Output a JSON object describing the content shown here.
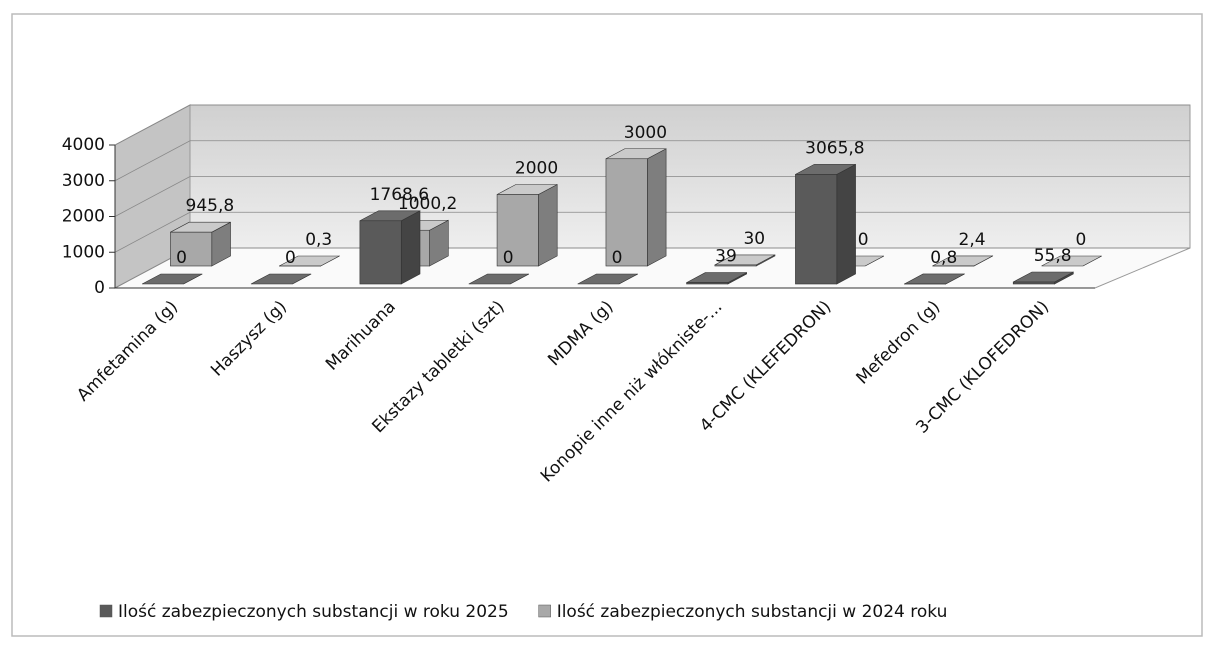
{
  "chart_data": {
    "type": "bar3d",
    "categories": [
      "Amfetamina (g)",
      "Haszysz (g)",
      "Marihuana",
      "Ekstazy tabletki (szt)",
      "MDMA (g)",
      "Konopie inne niż włókniste-...",
      "4-CMC (KLEFEDRON)",
      "Mefedron (g)",
      "3-CMC (KLOFEDRON)"
    ],
    "series": [
      {
        "name": "Ilość zabezpieczonych substancji w roku 2025",
        "color": "#5a5a5a",
        "values": [
          0,
          0,
          1768.6,
          0,
          0,
          39,
          3065.8,
          0.8,
          55.8
        ],
        "value_labels": [
          "0",
          "0",
          "1768,6",
          "0",
          "0",
          "39",
          "3065,8",
          "0,8",
          "55,8"
        ]
      },
      {
        "name": "Ilość zabezpieczonych substancji w 2024 roku",
        "color": "#a8a8a8",
        "values": [
          945.8,
          0.3,
          1000.2,
          2000,
          3000,
          30,
          0,
          2.4,
          0
        ],
        "value_labels": [
          "945,8",
          "0,3",
          "1000,2",
          "2000",
          "3000",
          "30",
          "0",
          "2,4",
          "0"
        ]
      }
    ],
    "ylim": [
      0,
      4000
    ],
    "yticks": [
      0,
      1000,
      2000,
      3000,
      4000
    ],
    "grid": true
  }
}
